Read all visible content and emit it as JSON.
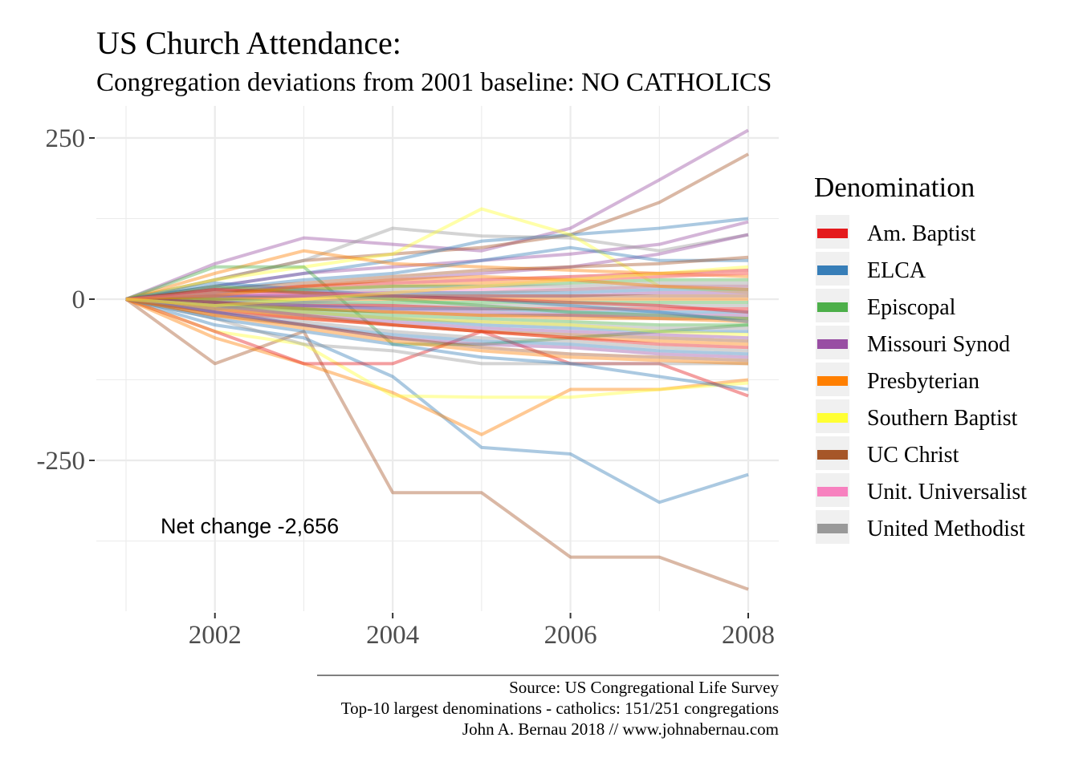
{
  "chart_data": {
    "type": "line",
    "title": "US Church Attendance:",
    "subtitle": "Congregation deviations from 2001 baseline: NO CATHOLICS",
    "xlabel": "",
    "ylabel": "",
    "x_ticks": [
      "2002",
      "2004",
      "2006",
      "2008"
    ],
    "y_ticks": [
      "250",
      "0",
      "-250"
    ],
    "xlim": [
      2001,
      2008
    ],
    "ylim": [
      -480,
      260
    ],
    "grid": true,
    "legend": {
      "title": "Denomination",
      "position": "right",
      "items": [
        {
          "label": "Am. Baptist",
          "color": "#e41a1c"
        },
        {
          "label": "ELCA",
          "color": "#377eb8"
        },
        {
          "label": "Episcopal",
          "color": "#4daf4a"
        },
        {
          "label": "Missouri Synod",
          "color": "#984ea3"
        },
        {
          "label": "Presbyterian",
          "color": "#ff7f00"
        },
        {
          "label": "Southern Baptist",
          "color": "#ffff33"
        },
        {
          "label": "UC Christ",
          "color": "#a65628"
        },
        {
          "label": "Unit. Universalist",
          "color": "#f781bf"
        },
        {
          "label": "United Methodist",
          "color": "#999999"
        }
      ]
    },
    "annotation": "Net change -2,656",
    "caption_lines": [
      "Source: US Congregational Life Survey",
      "Top-10 largest denominations - catholics: 151/251 congregations",
      "John A. Bernau 2018 // www.johnabernau.com"
    ],
    "x": [
      2001,
      2002,
      2003,
      2004,
      2005,
      2006,
      2007,
      2008
    ],
    "series": [
      {
        "denomination": "Missouri Synod",
        "values": [
          0,
          55,
          95,
          85,
          75,
          110,
          185,
          262
        ]
      },
      {
        "denomination": "UC Christ",
        "values": [
          0,
          30,
          60,
          70,
          80,
          100,
          150,
          225
        ]
      },
      {
        "denomination": "ELCA",
        "values": [
          0,
          20,
          40,
          60,
          90,
          100,
          110,
          125
        ]
      },
      {
        "denomination": "Missouri Synod",
        "values": [
          0,
          20,
          40,
          50,
          60,
          70,
          85,
          120
        ]
      },
      {
        "denomination": "United Methodist",
        "values": [
          0,
          30,
          60,
          110,
          98,
          95,
          75,
          100
        ]
      },
      {
        "denomination": "Southern Baptist",
        "values": [
          0,
          30,
          50,
          70,
          140,
          100,
          20,
          10
        ]
      },
      {
        "denomination": "Presbyterian",
        "values": [
          0,
          40,
          75,
          55,
          50,
          45,
          40,
          35
        ]
      },
      {
        "denomination": "Episcopal",
        "values": [
          0,
          50,
          50,
          -70,
          -70,
          -60,
          -50,
          -40
        ]
      },
      {
        "denomination": "UC Christ",
        "values": [
          0,
          -100,
          -50,
          -300,
          -300,
          -400,
          -400,
          -450
        ]
      },
      {
        "denomination": "ELCA",
        "values": [
          0,
          -40,
          -60,
          -120,
          -230,
          -240,
          -315,
          -272
        ]
      },
      {
        "denomination": "Presbyterian",
        "values": [
          0,
          -60,
          -100,
          -145,
          -210,
          -140,
          -140,
          -125
        ]
      },
      {
        "denomination": "Southern Baptist",
        "values": [
          0,
          -50,
          -70,
          -150,
          -152,
          -152,
          -140,
          -130
        ]
      },
      {
        "denomination": "Am. Baptist",
        "values": [
          0,
          -50,
          -100,
          -100,
          -50,
          -100,
          -100,
          -150
        ]
      },
      {
        "denomination": "United Methodist",
        "values": [
          0,
          -30,
          -70,
          -80,
          -100,
          -100,
          -100,
          -100
        ]
      },
      {
        "denomination": "ELCA",
        "values": [
          0,
          -30,
          -50,
          -70,
          -90,
          -100,
          -120,
          -140
        ]
      },
      {
        "denomination": "Missouri Synod",
        "values": [
          0,
          10,
          20,
          30,
          40,
          50,
          70,
          100
        ]
      },
      {
        "denomination": "ELCA",
        "values": [
          0,
          15,
          30,
          40,
          60,
          80,
          60,
          60
        ]
      },
      {
        "denomination": "UC Christ",
        "values": [
          0,
          15,
          25,
          35,
          45,
          50,
          55,
          65
        ]
      },
      {
        "denomination": "Am. Baptist",
        "values": [
          0,
          10,
          20,
          25,
          30,
          35,
          40,
          45
        ]
      },
      {
        "denomination": "Presbyterian",
        "values": [
          0,
          10,
          15,
          20,
          25,
          30,
          35,
          40
        ]
      },
      {
        "denomination": "Episcopal",
        "values": [
          0,
          10,
          15,
          20,
          20,
          25,
          30,
          30
        ]
      },
      {
        "denomination": "United Methodist",
        "values": [
          0,
          5,
          10,
          15,
          20,
          20,
          25,
          25
        ]
      },
      {
        "denomination": "Unit. Universalist",
        "values": [
          0,
          5,
          10,
          10,
          15,
          15,
          20,
          20
        ]
      },
      {
        "denomination": "ELCA",
        "values": [
          0,
          5,
          5,
          10,
          10,
          10,
          15,
          15
        ]
      },
      {
        "denomination": "Missouri Synod",
        "values": [
          0,
          5,
          5,
          5,
          5,
          5,
          10,
          10
        ]
      },
      {
        "denomination": "UC Christ",
        "values": [
          0,
          0,
          5,
          5,
          5,
          5,
          5,
          5
        ]
      },
      {
        "denomination": "Presbyterian",
        "values": [
          0,
          0,
          0,
          0,
          0,
          0,
          0,
          0
        ]
      },
      {
        "denomination": "Episcopal",
        "values": [
          0,
          0,
          -5,
          -5,
          -5,
          -5,
          -5,
          -5
        ]
      },
      {
        "denomination": "United Methodist",
        "values": [
          0,
          -5,
          -5,
          -10,
          -10,
          -10,
          -10,
          -10
        ]
      },
      {
        "denomination": "Am. Baptist",
        "values": [
          0,
          -5,
          -10,
          -10,
          -15,
          -15,
          -15,
          -15
        ]
      },
      {
        "denomination": "ELCA",
        "values": [
          0,
          -5,
          -10,
          -15,
          -15,
          -20,
          -20,
          -20
        ]
      },
      {
        "denomination": "Missouri Synod",
        "values": [
          0,
          -5,
          -10,
          -15,
          -20,
          -25,
          -25,
          -25
        ]
      },
      {
        "denomination": "UC Christ",
        "values": [
          0,
          -5,
          -15,
          -20,
          -25,
          -25,
          -30,
          -30
        ]
      },
      {
        "denomination": "Presbyterian",
        "values": [
          0,
          -10,
          -15,
          -20,
          -25,
          -30,
          -30,
          -35
        ]
      },
      {
        "denomination": "Episcopal",
        "values": [
          0,
          -10,
          -15,
          -25,
          -30,
          -35,
          -40,
          -40
        ]
      },
      {
        "denomination": "United Methodist",
        "values": [
          0,
          -10,
          -20,
          -30,
          -35,
          -40,
          -45,
          -45
        ]
      },
      {
        "denomination": "ELCA",
        "values": [
          0,
          -10,
          -20,
          -30,
          -40,
          -45,
          -50,
          -50
        ]
      },
      {
        "denomination": "Southern Baptist",
        "values": [
          0,
          -10,
          -20,
          -30,
          -35,
          -40,
          -50,
          -55
        ]
      },
      {
        "denomination": "Missouri Synod",
        "values": [
          0,
          -10,
          -25,
          -35,
          -45,
          -50,
          -55,
          -60
        ]
      },
      {
        "denomination": "UC Christ",
        "values": [
          0,
          -15,
          -25,
          -40,
          -50,
          -55,
          -60,
          -65
        ]
      },
      {
        "denomination": "Presbyterian",
        "values": [
          0,
          -15,
          -30,
          -40,
          -50,
          -60,
          -65,
          -70
        ]
      },
      {
        "denomination": "Am. Baptist",
        "values": [
          0,
          -20,
          -30,
          -40,
          -50,
          -60,
          -70,
          -75
        ]
      },
      {
        "denomination": "United Methodist",
        "values": [
          0,
          -20,
          -35,
          -50,
          -60,
          -65,
          -75,
          -80
        ]
      },
      {
        "denomination": "ELCA",
        "values": [
          0,
          -20,
          -40,
          -55,
          -65,
          -70,
          -80,
          -85
        ]
      },
      {
        "denomination": "Missouri Synod",
        "values": [
          0,
          -20,
          -40,
          -60,
          -70,
          -75,
          -85,
          -90
        ]
      },
      {
        "denomination": "UC Christ",
        "values": [
          0,
          -25,
          -40,
          -60,
          -75,
          -85,
          -90,
          -95
        ]
      },
      {
        "denomination": "Presbyterian",
        "values": [
          0,
          -25,
          -45,
          -65,
          -80,
          -90,
          -95,
          -100
        ]
      },
      {
        "denomination": "Episcopal",
        "values": [
          0,
          20,
          10,
          0,
          -10,
          -20,
          -25,
          -30
        ]
      },
      {
        "denomination": "ELCA",
        "values": [
          0,
          25,
          15,
          5,
          0,
          -10,
          -20,
          -35
        ]
      },
      {
        "denomination": "Am. Baptist",
        "values": [
          0,
          15,
          10,
          5,
          0,
          -5,
          -10,
          -20
        ]
      },
      {
        "denomination": "United Methodist",
        "values": [
          0,
          -15,
          -5,
          5,
          10,
          15,
          20,
          20
        ]
      },
      {
        "denomination": "Unit. Universalist",
        "values": [
          0,
          10,
          5,
          10,
          20,
          30,
          35,
          40
        ]
      },
      {
        "denomination": "Presbyterian",
        "values": [
          0,
          5,
          20,
          30,
          35,
          30,
          20,
          15
        ]
      },
      {
        "denomination": "Southern Baptist",
        "values": [
          0,
          -10,
          0,
          10,
          20,
          30,
          40,
          50
        ]
      }
    ]
  }
}
